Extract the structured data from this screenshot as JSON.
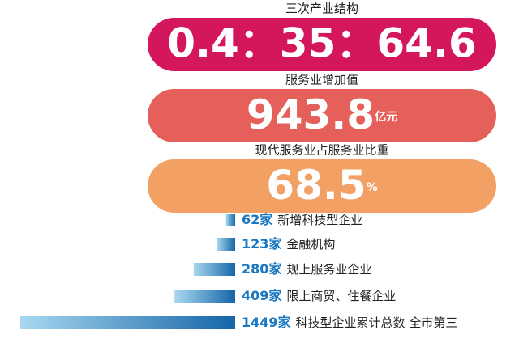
{
  "panels": [
    {
      "title": "三次产业结构",
      "value": "0.4：35：64.6"
    },
    {
      "title": "服务业增加值",
      "value": "943.8",
      "unit": "亿元"
    },
    {
      "title": "现代服务业占服务业比重",
      "value": "68.5",
      "unit": "%"
    }
  ],
  "chart_data": {
    "type": "bar",
    "orientation": "horizontal",
    "categories": [
      "新增科技型企业",
      "金融机构",
      "规上服务业企业",
      "限上商贸、住餐企业",
      "科技型企业累计总数 全市第三"
    ],
    "values": [
      62,
      123,
      280,
      409,
      1449
    ],
    "value_labels": [
      "62家",
      "123家",
      "280家",
      "409家",
      "1449家"
    ]
  }
}
